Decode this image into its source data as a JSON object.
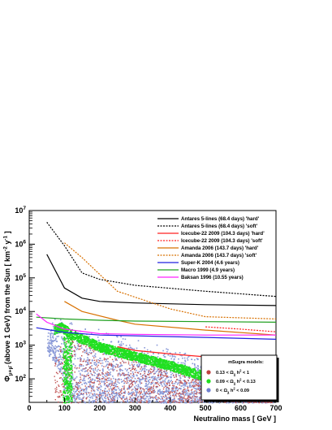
{
  "chart_data": {
    "type": "line",
    "title": "",
    "xlabel": "Neutralino mass  [ GeV ]",
    "ylabel_main": "Φ",
    "ylabel_sub": "μ+μ̄",
    "ylabel_rest": " (above 1 GeV) from the Sun  [ km",
    "ylabel_exp": "-2",
    "ylabel_mid": " y",
    "ylabel_exp2": "-1",
    "ylabel_end": " ]",
    "x_scale": "linear",
    "y_scale": "log",
    "xlim": [
      0,
      700
    ],
    "ylim": [
      20,
      10000000
    ],
    "x_ticks": [
      0,
      100,
      200,
      300,
      400,
      500,
      600,
      700
    ],
    "x_tick_labels": [
      "0",
      "100",
      "200",
      "300",
      "400",
      "500",
      "600",
      "700"
    ],
    "y_ticks": [
      100,
      1000,
      10000,
      100000,
      1000000,
      10000000
    ],
    "y_tick_bases": [
      "10",
      "10",
      "10",
      "10",
      "10",
      "10"
    ],
    "y_tick_exps": [
      "2",
      "3",
      "4",
      "5",
      "6",
      "7"
    ],
    "legend_position": "top-right",
    "series": [
      {
        "name": "Antares 5-lines (68.4 days) 'hard'",
        "color": "#000000",
        "dash": "solid",
        "x": [
          50,
          100,
          150,
          200,
          300,
          500,
          700
        ],
        "y": [
          500000,
          50000,
          25000,
          20000,
          18000,
          16000,
          15000
        ]
      },
      {
        "name": "Antares 5-lines (68.4 days) 'soft'",
        "color": "#000000",
        "dash": "dotted",
        "x": [
          50,
          100,
          150,
          200,
          300,
          500,
          700
        ],
        "y": [
          4500000,
          900000,
          140000,
          90000,
          60000,
          40000,
          28000
        ]
      },
      {
        "name": "Icecube-22 2009 (104.3 days) 'hard'",
        "color": "#ff2020",
        "dash": "solid",
        "x": [
          250,
          300,
          400,
          500,
          600,
          700
        ],
        "y": [
          900,
          700,
          550,
          450,
          400,
          400
        ]
      },
      {
        "name": "Icecube-22 2009 (104.3 days) 'soft'",
        "color": "#ff2020",
        "dash": "dotted",
        "x": [
          500,
          600,
          700
        ],
        "y": [
          3500,
          3000,
          2500
        ]
      },
      {
        "name": "Amanda 2006 (143.7 days) 'hard'",
        "color": "#d87000",
        "dash": "solid",
        "x": [
          100,
          150,
          250,
          300,
          500,
          700
        ],
        "y": [
          20000,
          10000,
          5500,
          4200,
          2800,
          2000
        ]
      },
      {
        "name": "Amanda 2006 (143.7 days) 'soft'",
        "color": "#d87000",
        "dash": "dotted",
        "x": [
          100,
          150,
          250,
          400,
          500,
          700
        ],
        "y": [
          1100000,
          400000,
          40000,
          12000,
          7000,
          6000
        ]
      },
      {
        "name": "Super-K 2004 (4.6 years)",
        "color": "#2020e0",
        "dash": "solid",
        "x": [
          20,
          100,
          200,
          300,
          500,
          700
        ],
        "y": [
          3300,
          2400,
          2000,
          1900,
          1700,
          1500
        ]
      },
      {
        "name": "Macro 1999 (4.9 years)",
        "color": "#20a020",
        "dash": "solid",
        "x": [
          20,
          100,
          200,
          300,
          500,
          700
        ],
        "y": [
          6800,
          6000,
          5500,
          5200,
          5000,
          4800
        ]
      },
      {
        "name": "Baksan 1996 (10.55 years)",
        "color": "#ff20ff",
        "dash": "solid",
        "x": [
          20,
          50,
          100,
          200,
          300,
          500,
          700
        ],
        "y": [
          8500,
          4800,
          3000,
          2200,
          2100,
          2000,
          2000
        ]
      }
    ],
    "scatter_legend": {
      "title": "mSugra models:",
      "entries": [
        {
          "color": "#c04040",
          "pre": "0.13 < Ω",
          "sub": "χ",
          "mid": " h",
          "exp": "2",
          "post": " < 1"
        },
        {
          "color": "#20e020",
          "pre": "0.09 < Ω",
          "sub": "χ",
          "mid": " h",
          "exp": "2",
          "post": " < 0.13"
        },
        {
          "color": "#7080d0",
          "pre": "0 < Ω",
          "sub": "χ",
          "mid": " h",
          "exp": "2",
          "post": " < 0.09"
        }
      ]
    },
    "scatter_regions": {
      "blue": {
        "color": "#8a9ad8",
        "upper": [
          [
            50,
            2500
          ],
          [
            70,
            7000
          ],
          [
            90,
            7000
          ],
          [
            120,
            5500
          ],
          [
            200,
            3500
          ],
          [
            300,
            1800
          ],
          [
            400,
            900
          ],
          [
            500,
            400
          ],
          [
            600,
            150
          ],
          [
            690,
            40
          ]
        ],
        "lower": [
          [
            690,
            20
          ],
          [
            100,
            20
          ],
          [
            60,
            100
          ],
          [
            50,
            600
          ]
        ]
      },
      "red": {
        "color": "#c05050",
        "upper": [
          [
            70,
            400
          ],
          [
            100,
            2000
          ],
          [
            200,
            900
          ],
          [
            300,
            400
          ],
          [
            400,
            200
          ],
          [
            500,
            100
          ],
          [
            600,
            60
          ],
          [
            690,
            30
          ]
        ],
        "lower": [
          [
            690,
            20
          ],
          [
            120,
            20
          ],
          [
            80,
            80
          ]
        ]
      },
      "green": {
        "color": "#20e020",
        "band": [
          [
            70,
            3000
          ],
          [
            90,
            3500
          ],
          [
            120,
            2200
          ],
          [
            200,
            900
          ],
          [
            300,
            480
          ],
          [
            400,
            250
          ],
          [
            500,
            120
          ],
          [
            600,
            60
          ],
          [
            690,
            30
          ]
        ],
        "band_width_dec": 0.14,
        "stalk_x": [
          95,
          120
        ],
        "stalk_to": 20
      }
    }
  }
}
